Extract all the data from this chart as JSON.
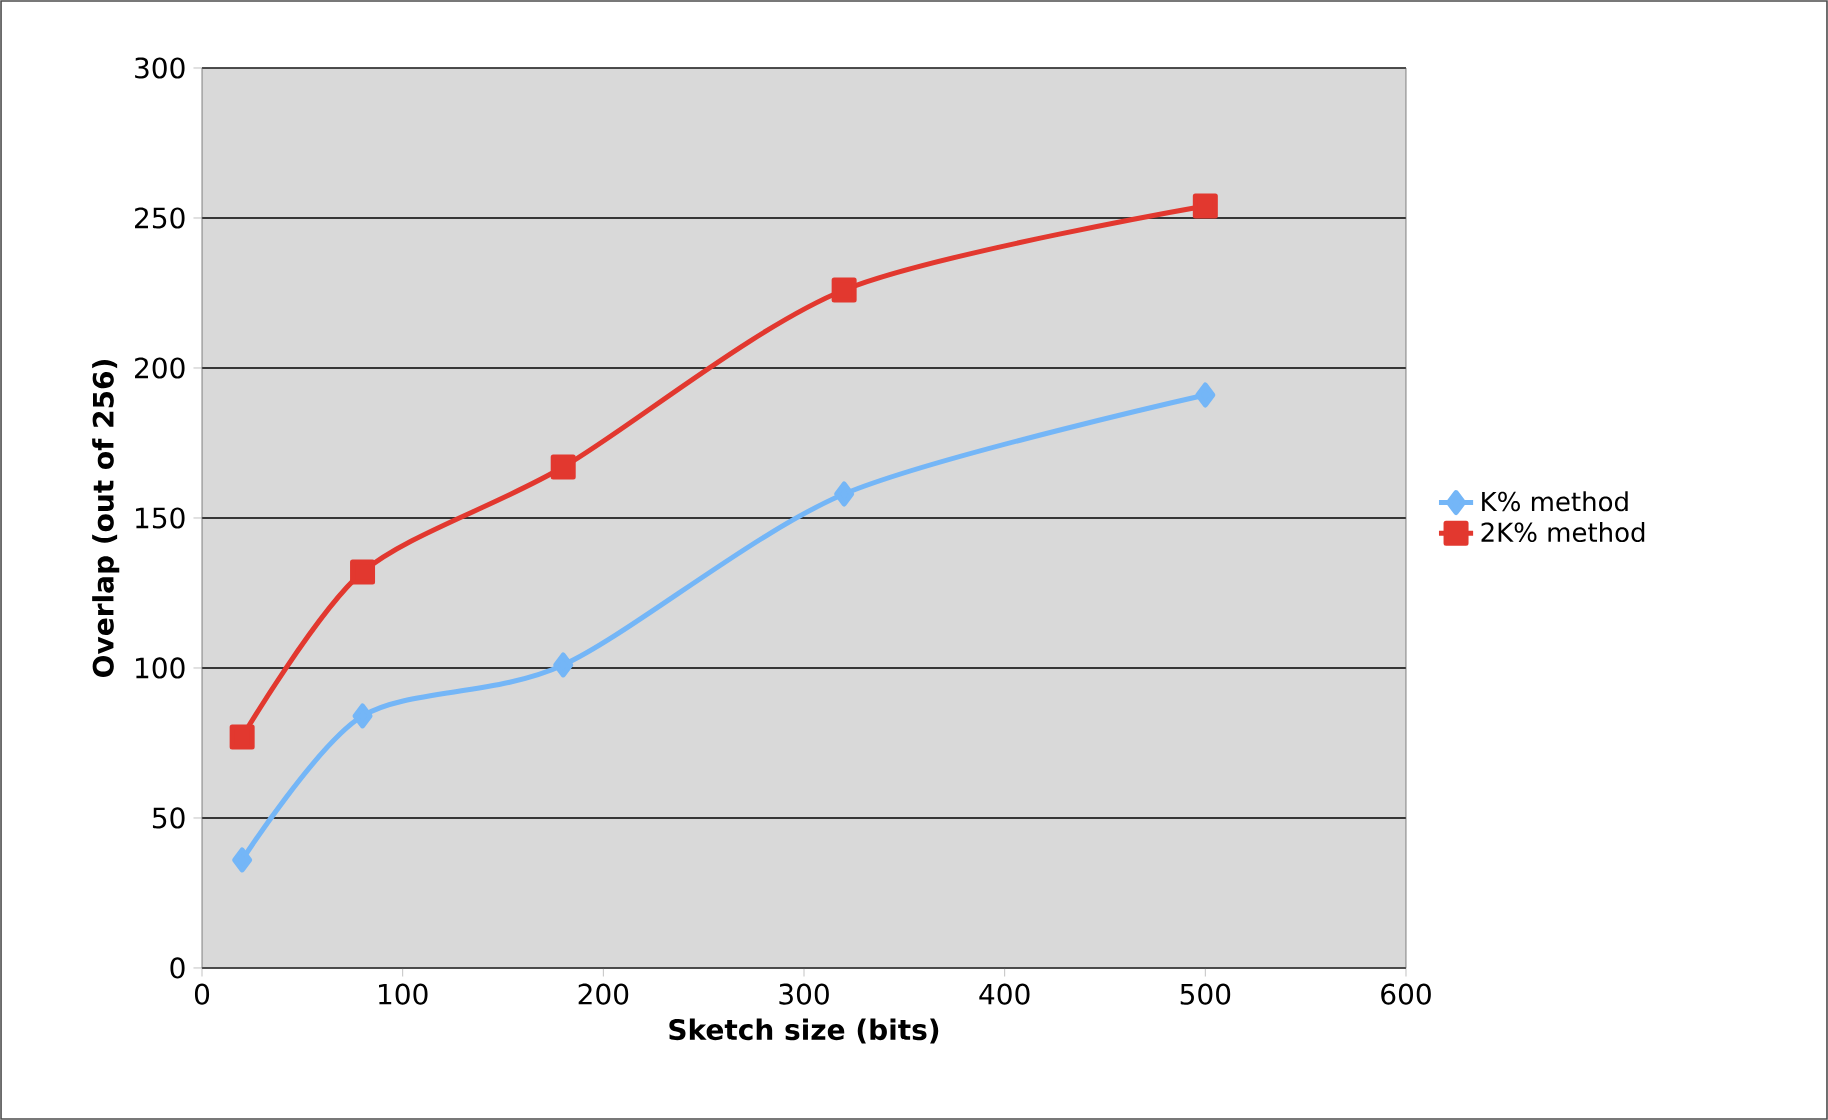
{
  "chart_data": {
    "type": "line",
    "xlabel": "Sketch size (bits)",
    "ylabel": "Overlap (out of 256)",
    "series": [
      {
        "name": "K% method",
        "color": "#74b6f7",
        "marker": "diamond",
        "x": [
          20,
          80,
          180,
          320,
          500
        ],
        "values": [
          36,
          84,
          101,
          158,
          191
        ]
      },
      {
        "name": "2K% method",
        "color": "#e2382f",
        "marker": "square",
        "x": [
          20,
          80,
          180,
          320,
          500
        ],
        "values": [
          77,
          132,
          167,
          226,
          254
        ]
      }
    ],
    "xlim": [
      0,
      600
    ],
    "xticks": [
      0,
      100,
      200,
      300,
      400,
      500,
      600
    ],
    "ylim": [
      0,
      300
    ],
    "yticks": [
      0,
      50,
      100,
      150,
      200,
      250,
      300
    ],
    "grid": "y",
    "legend": "right"
  }
}
